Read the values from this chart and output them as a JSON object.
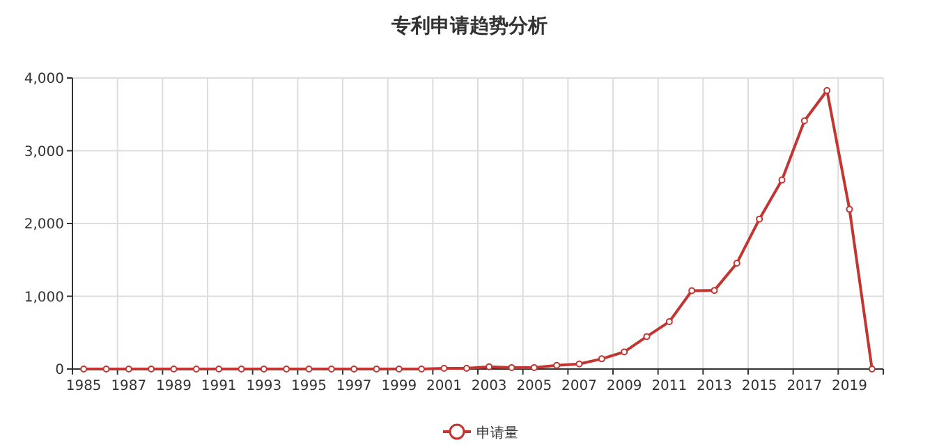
{
  "chart_data": {
    "type": "line",
    "title": "专利申请趋势分析",
    "categories": [
      "1985",
      null,
      "1987",
      null,
      "1989",
      null,
      "1991",
      null,
      "1993",
      null,
      "1995",
      null,
      "1997",
      null,
      "1999",
      null,
      "2001",
      null,
      "2003",
      null,
      "2005",
      null,
      "2007",
      null,
      "2009",
      null,
      "2011",
      null,
      "2013",
      null,
      "2015",
      null,
      "2017",
      null,
      "2019",
      null
    ],
    "series": [
      {
        "name": "申请量",
        "color": "#c23531",
        "values": [
          0,
          0,
          0,
          0,
          0,
          0,
          0,
          0,
          0,
          0,
          0,
          0,
          0,
          0,
          0,
          0,
          10,
          10,
          30,
          20,
          20,
          50,
          70,
          140,
          235,
          446,
          650,
          1077,
          1080,
          1455,
          2061,
          2597,
          3412,
          3828,
          2195,
          0
        ]
      }
    ],
    "ylim": [
      0,
      4000
    ],
    "yticks": [
      0,
      {
        "value": 1000,
        "label": "1,000"
      },
      {
        "value": 2000,
        "label": "2,000"
      },
      {
        "value": 3000,
        "label": "3,000"
      },
      {
        "value": 4000,
        "label": "4,000"
      }
    ],
    "grid": true,
    "legend": "bottom",
    "marker": "circle",
    "line_style": "solid"
  }
}
